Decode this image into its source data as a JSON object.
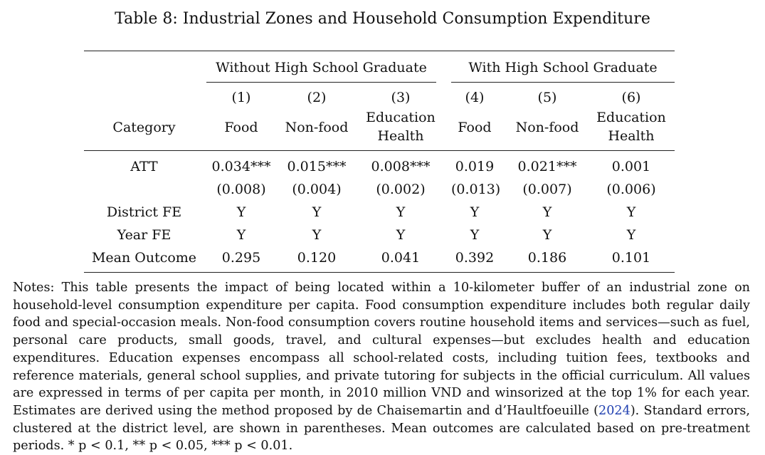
{
  "caption": "Table 8: Industrial Zones and Household Consumption Expenditure",
  "groups": [
    {
      "label": "Without High School Graduate"
    },
    {
      "label": "With High School Graduate"
    }
  ],
  "col_numbers": [
    "(1)",
    "(2)",
    "(3)",
    "(4)",
    "(5)",
    "(6)"
  ],
  "row_header_label": "Category",
  "col_names": [
    {
      "line1": "Food",
      "line2": ""
    },
    {
      "line1": "Non-food",
      "line2": ""
    },
    {
      "line1": "Education",
      "line2": "Health"
    },
    {
      "line1": "Food",
      "line2": ""
    },
    {
      "line1": "Non-food",
      "line2": ""
    },
    {
      "line1": "Education",
      "line2": "Health"
    }
  ],
  "rows": [
    {
      "label": "ATT",
      "cells": [
        "0.034***",
        "0.015***",
        "0.008***",
        "0.019",
        "0.021***",
        "0.001"
      ]
    },
    {
      "label": "",
      "cells": [
        "(0.008)",
        "(0.004)",
        "(0.002)",
        "(0.013)",
        "(0.007)",
        "(0.006)"
      ]
    },
    {
      "label": "District FE",
      "cells": [
        "Y",
        "Y",
        "Y",
        "Y",
        "Y",
        "Y"
      ]
    },
    {
      "label": "Year FE",
      "cells": [
        "Y",
        "Y",
        "Y",
        "Y",
        "Y",
        "Y"
      ]
    },
    {
      "label": "Mean Outcome",
      "cells": [
        "0.295",
        "0.120",
        "0.041",
        "0.392",
        "0.186",
        "0.101"
      ]
    }
  ],
  "notes": {
    "before_link": "Notes: This table presents the impact of being located within a 10-kilometer buffer of an industrial zone on household-level consumption expenditure per capita. Food consumption expenditure includes both regular daily food and special-occasion meals. Non-food consumption covers routine household items and services—such as fuel, personal care products, small goods, travel, and cultural expenses—but excludes health and education expenditures. Education expenses encompass all school-related costs, including tuition fees, textbooks and reference materials, general school supplies, and private tutoring for subjects in the official curriculum. All values are expressed in terms of per capita per month, in 2010 million VND and winsorized at the top 1% for each year. Estimates are derived using the method proposed by de Chaisemartin and d’Haultfoeuille (",
    "link_text": "2024",
    "after_link": "). Standard errors, clustered at the district level, are shown in parentheses. Mean outcomes are calculated based on pre-treatment periods. * p < 0.1, ** p < 0.05, *** p < 0.01."
  },
  "colors": {
    "link": "#1f3fb0",
    "text": "#111111"
  }
}
